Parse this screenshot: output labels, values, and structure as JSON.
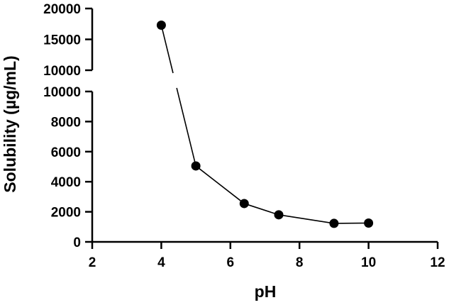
{
  "chart_data": {
    "type": "scatter",
    "xlabel": "pH",
    "ylabel": "Solubility (µg/mL)",
    "xlim": [
      2,
      12
    ],
    "xticks": [
      2,
      4,
      6,
      8,
      10,
      12
    ],
    "y_axis_segments": [
      {
        "ylim": [
          0,
          10000
        ],
        "ticks": [
          0,
          2000,
          4000,
          6000,
          8000,
          10000
        ]
      },
      {
        "ylim": [
          10000,
          20000
        ],
        "ticks": [
          10000,
          15000,
          20000
        ]
      }
    ],
    "grid": false,
    "legend": "none",
    "series": [
      {
        "color": "#000000",
        "marker": "circle",
        "connected": true,
        "points": [
          {
            "x": 4,
            "y": 17300
          },
          {
            "x": 5,
            "y": 5050
          },
          {
            "x": 6.4,
            "y": 2550
          },
          {
            "x": 7.4,
            "y": 1800
          },
          {
            "x": 9,
            "y": 1230
          },
          {
            "x": 10,
            "y": 1250
          }
        ]
      }
    ]
  }
}
